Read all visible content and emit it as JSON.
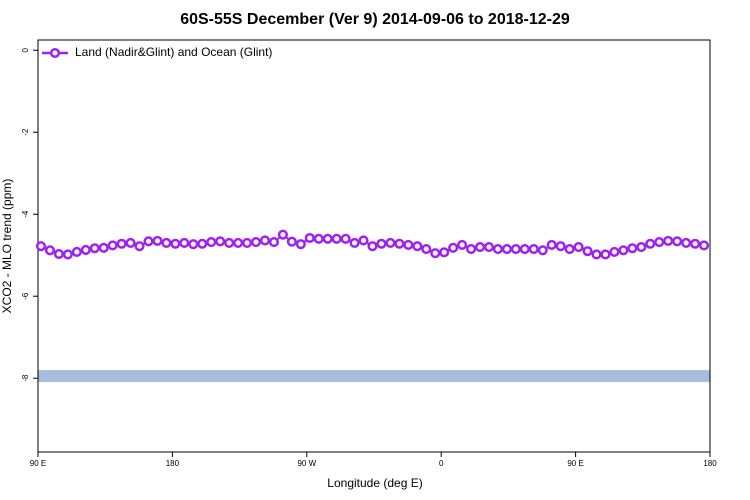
{
  "chart_data": {
    "type": "line",
    "title": "60S-55S December (Ver 9)   2014-09-06 to 2018-12-29",
    "xlabel": "Longitude (deg E)",
    "ylabel": "XCO2 - MLO trend (ppm)",
    "xlim": [
      90,
      540
    ],
    "xticks": [
      {
        "value": 90,
        "label": "90 E"
      },
      180,
      {
        "value": 270,
        "label": "90 W"
      },
      {
        "value": 360,
        "label": "0"
      },
      {
        "value": 450,
        "label": "90 E"
      },
      {
        "value": 540,
        "label": "180"
      }
    ],
    "ylim": [
      -9.8,
      0.25
    ],
    "yticks": [
      0,
      -2,
      -4,
      -6,
      -8
    ],
    "legend": "top-left",
    "band": {
      "y": -7.95,
      "color": "#a6bddb"
    },
    "x": [
      92,
      98,
      104,
      110,
      116,
      122,
      128,
      134,
      140,
      146,
      152,
      158,
      164,
      170,
      176,
      182,
      188,
      194,
      200,
      206,
      212,
      218,
      224,
      230,
      236,
      242,
      248,
      254,
      260,
      266,
      272,
      278,
      284,
      290,
      296,
      302,
      308,
      314,
      320,
      326,
      332,
      338,
      344,
      350,
      356,
      362,
      368,
      374,
      380,
      386,
      392,
      398,
      404,
      410,
      416,
      422,
      428,
      434,
      440,
      446,
      452,
      458,
      464,
      470,
      476,
      482,
      488,
      494,
      500,
      506,
      512,
      518,
      524,
      530,
      536
    ],
    "series": [
      {
        "name": "Land (Nadir&Glint) and Ocean (Glint)",
        "color": "#a020f0",
        "values": [
          -4.78,
          -4.88,
          -4.97,
          -4.98,
          -4.92,
          -4.87,
          -4.83,
          -4.82,
          -4.76,
          -4.72,
          -4.7,
          -4.78,
          -4.66,
          -4.65,
          -4.7,
          -4.72,
          -4.7,
          -4.73,
          -4.72,
          -4.68,
          -4.66,
          -4.7,
          -4.7,
          -4.7,
          -4.68,
          -4.64,
          -4.68,
          -4.5,
          -4.67,
          -4.73,
          -4.58,
          -4.6,
          -4.6,
          -4.6,
          -4.6,
          -4.7,
          -4.64,
          -4.78,
          -4.72,
          -4.7,
          -4.72,
          -4.75,
          -4.78,
          -4.85,
          -4.95,
          -4.93,
          -4.82,
          -4.75,
          -4.85,
          -4.8,
          -4.8,
          -4.85,
          -4.85,
          -4.85,
          -4.85,
          -4.85,
          -4.88,
          -4.75,
          -4.78,
          -4.85,
          -4.8,
          -4.9,
          -4.98,
          -4.98,
          -4.92,
          -4.88,
          -4.83,
          -4.8,
          -4.72,
          -4.68,
          -4.65,
          -4.66,
          -4.7,
          -4.72,
          -4.76
        ]
      }
    ]
  }
}
